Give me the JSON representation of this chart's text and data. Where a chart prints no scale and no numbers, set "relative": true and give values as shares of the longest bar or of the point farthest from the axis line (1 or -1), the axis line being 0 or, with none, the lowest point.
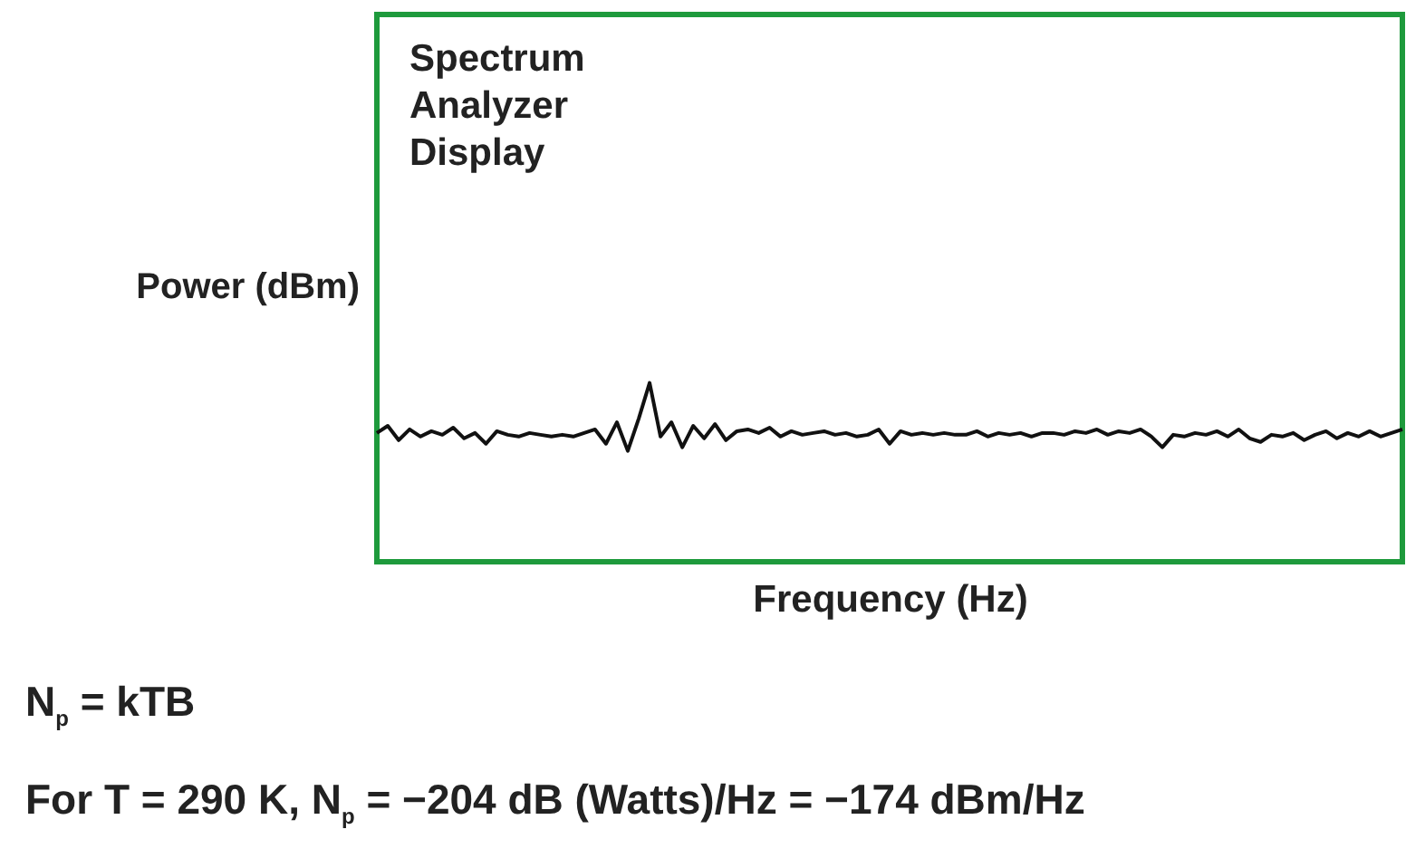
{
  "chart_data": {
    "type": "line",
    "relative": true,
    "xlabel": "Frequency (Hz)",
    "ylabel": "Power (dBm)",
    "grid": false,
    "annotations": [
      "Spectrum Analyzer Display",
      "N$_{p}$ = kTB",
      "For T = 290 K, N$_{p}$ =  −204 dB (Watts)/Hz =  −174 dBm/Hz"
    ],
    "categories": [
      null,
      null,
      null,
      null,
      null,
      null,
      null,
      null,
      null,
      null,
      null,
      null,
      null,
      null,
      null,
      null,
      null,
      null,
      null,
      null,
      null,
      null,
      null,
      null,
      null,
      null,
      null,
      null,
      null,
      null,
      null,
      null,
      null,
      null,
      null,
      null,
      null,
      null,
      null,
      null,
      null,
      null,
      null,
      null,
      null,
      null,
      null,
      null,
      null,
      null,
      null,
      null,
      null,
      null,
      null,
      null,
      null,
      null,
      null,
      null,
      null,
      null,
      null,
      null,
      null,
      null,
      null,
      null,
      null,
      null,
      null,
      null,
      null,
      null,
      null,
      null,
      null,
      null,
      null,
      null,
      null,
      null,
      null,
      null,
      null,
      null,
      null,
      null,
      null,
      null,
      null,
      null,
      null,
      null,
      null
    ],
    "series": [
      {
        "color": "#111111",
        "values": [
          0.72,
          0.76,
          0.68,
          0.74,
          0.7,
          0.73,
          0.71,
          0.75,
          0.69,
          0.72,
          0.66,
          0.73,
          0.71,
          0.7,
          0.72,
          0.71,
          0.7,
          0.71,
          0.7,
          0.72,
          0.74,
          0.66,
          0.78,
          0.62,
          0.8,
          1.0,
          0.7,
          0.78,
          0.64,
          0.76,
          0.69,
          0.77,
          0.68,
          0.73,
          0.74,
          0.72,
          0.75,
          0.7,
          0.73,
          0.71,
          0.72,
          0.73,
          0.71,
          0.72,
          0.7,
          0.71,
          0.74,
          0.66,
          0.73,
          0.71,
          0.72,
          0.71,
          0.72,
          0.71,
          0.71,
          0.73,
          0.7,
          0.72,
          0.71,
          0.72,
          0.7,
          0.72,
          0.72,
          0.71,
          0.73,
          0.72,
          0.74,
          0.71,
          0.73,
          0.72,
          0.74,
          0.7,
          0.64,
          0.71,
          0.7,
          0.72,
          0.71,
          0.73,
          0.7,
          0.74,
          0.69,
          0.67,
          0.71,
          0.7,
          0.72,
          0.68,
          0.71,
          0.73,
          0.69,
          0.72,
          0.7,
          0.73,
          0.7,
          0.72,
          0.74
        ]
      }
    ]
  }
}
